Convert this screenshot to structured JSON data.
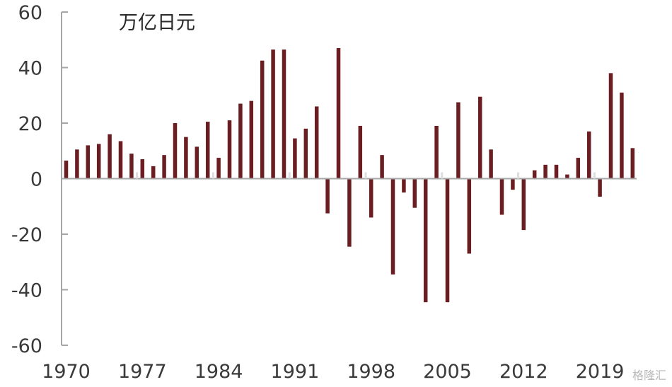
{
  "chart_data": {
    "type": "bar",
    "unit_label": "万亿日元",
    "x": [
      1970,
      1971,
      1972,
      1973,
      1974,
      1975,
      1976,
      1977,
      1978,
      1979,
      1980,
      1981,
      1982,
      1983,
      1984,
      1985,
      1986,
      1987,
      1988,
      1989,
      1990,
      1991,
      1992,
      1993,
      1994,
      1995,
      1996,
      1997,
      1998,
      1999,
      2000,
      2001,
      2002,
      2003,
      2004,
      2005,
      2006,
      2007,
      2008,
      2009,
      2010,
      2011,
      2012,
      2013,
      2014,
      2015,
      2016,
      2017,
      2018,
      2019,
      2020,
      2021,
      2022
    ],
    "values": [
      6.5,
      10.5,
      12,
      12.5,
      16,
      13.5,
      9,
      7,
      4.5,
      8.5,
      20,
      15,
      11.5,
      20.5,
      7.5,
      21,
      27,
      28,
      42.5,
      46.5,
      46.5,
      14.5,
      18,
      26,
      -12.5,
      47,
      -24.5,
      19,
      -14,
      8.5,
      -34.5,
      -5,
      -10.5,
      -44.5,
      19,
      -44.5,
      27.5,
      -27,
      29.5,
      10.5,
      -13,
      -4,
      -18.5,
      3,
      5,
      5,
      1.5,
      7.5,
      17,
      -6.5,
      38,
      31,
      11
    ],
    "xticks": [
      "1970",
      "1977",
      "1984",
      "1991",
      "1998",
      "2005",
      "2012",
      "2019"
    ],
    "yticks": [
      "60",
      "40",
      "20",
      "0",
      "-20",
      "-40",
      "-60"
    ],
    "ylim": [
      -60,
      60
    ],
    "colors": {
      "bar": "#6b1e22",
      "axis": "#a6a6a6"
    },
    "watermark": "格隆汇"
  }
}
